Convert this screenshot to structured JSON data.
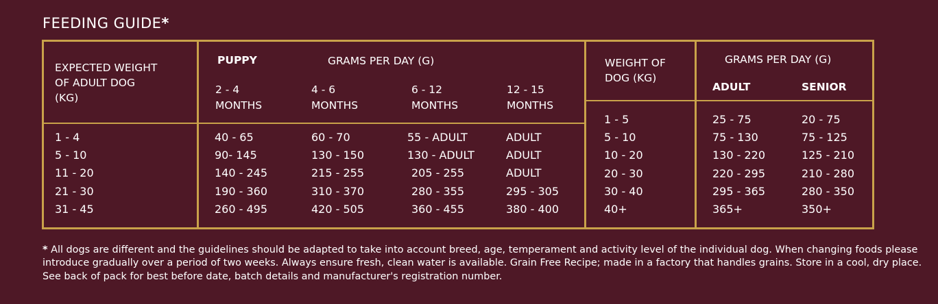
{
  "title": "FEEDING GUIDE",
  "title_star": "*",
  "colors": {
    "background": "#4e1826",
    "border": "#c9a24a",
    "text": "#ffffff"
  },
  "table1": {
    "weight_header": "EXPECTED WEIGHT\nOF ADULT DOG\n(KG)",
    "puppy_label": "PUPPY",
    "grams_header": "GRAMS PER DAY (G)",
    "age_headers": [
      "2 - 4\nMONTHS",
      "4 - 6\nMONTHS",
      "6 - 12\nMONTHS",
      "12 - 15\nMONTHS"
    ],
    "weights": [
      "1 - 4",
      "5 - 10",
      "11 - 20",
      "21 - 30",
      "31 - 45"
    ],
    "columns": [
      [
        "40 - 65",
        "90- 145",
        "140 - 245",
        "190 - 360",
        "260 - 495"
      ],
      [
        "60 - 70",
        "130 - 150",
        "215 - 255",
        "310 - 370",
        "420 - 505"
      ],
      [
        "55 - ADULT",
        "130 - ADULT",
        "205 - 255",
        "280 - 355",
        "360 - 455"
      ],
      [
        "ADULT",
        "ADULT",
        "ADULT",
        "295 - 305",
        "380 - 400"
      ]
    ]
  },
  "table2": {
    "weight_header": "WEIGHT OF\nDOG (KG)",
    "grams_header": "GRAMS PER DAY (G)",
    "adult_label": "ADULT",
    "senior_label": "SENIOR",
    "weights": [
      "1 - 5",
      "5 - 10",
      "10 - 20",
      "20 - 30",
      "30 - 40",
      "40+"
    ],
    "adult": [
      "25 - 75",
      "75 - 130",
      "130 - 220",
      "220 - 295",
      "295 - 365",
      "365+"
    ],
    "senior": [
      "20 - 75",
      "75 - 125",
      "125 - 210",
      "210 - 280",
      "280 - 350",
      "350+"
    ]
  },
  "footnote_star": "*",
  "footnote": " All dogs are different and the guidelines should be adapted to take into account breed, age, temperament and activity level of the individual dog. When changing foods please introduce gradually over a period of two weeks. Always ensure fresh, clean water is available. Grain Free Recipe; made in a factory that handles grains. Store in a cool, dry place. See back of pack for best before date, batch details and manufacturer's registration number."
}
